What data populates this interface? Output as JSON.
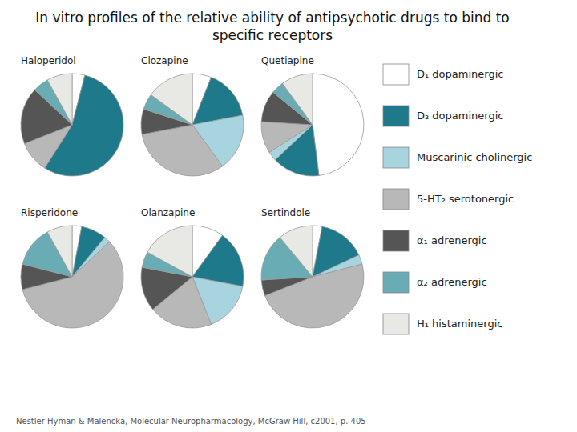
{
  "chart_data": {
    "type": "pie",
    "title": "In vitro profiles of the relative ability of antipsychotic drugs to bind to specific receptors",
    "categories": [
      "D₁ dopaminergic",
      "D₂ dopaminergic",
      "Muscarinic cholinergic",
      "5-HT₂ serotonergic",
      "α₁ adrenergic",
      "α₂ adrenergic",
      "H₁ histaminergic"
    ],
    "colors": [
      "#ffffff",
      "#1e7a8a",
      "#a8d4e0",
      "#b8b8b8",
      "#555555",
      "#6aacb4",
      "#e8e8e4"
    ],
    "series": [
      {
        "name": "Haloperidol",
        "values": [
          4,
          55,
          0,
          10,
          18,
          5,
          8
        ]
      },
      {
        "name": "Clozapine",
        "values": [
          6,
          16,
          18,
          32,
          8,
          5,
          15
        ]
      },
      {
        "name": "Quetiapine",
        "values": [
          48,
          15,
          3,
          10,
          10,
          4,
          10
        ]
      },
      {
        "name": "Risperidone",
        "values": [
          3,
          8,
          2,
          58,
          8,
          13,
          8
        ]
      },
      {
        "name": "Olanzapine",
        "values": [
          10,
          18,
          16,
          20,
          14,
          5,
          17
        ]
      },
      {
        "name": "Sertindole",
        "values": [
          3,
          15,
          3,
          48,
          5,
          15,
          11
        ]
      }
    ],
    "legend": "right",
    "annotations": [
      "Nestler Hyman & Malencka, Molecular Neuropharmacology, McGraw Hill, c2001, p. 405"
    ]
  }
}
